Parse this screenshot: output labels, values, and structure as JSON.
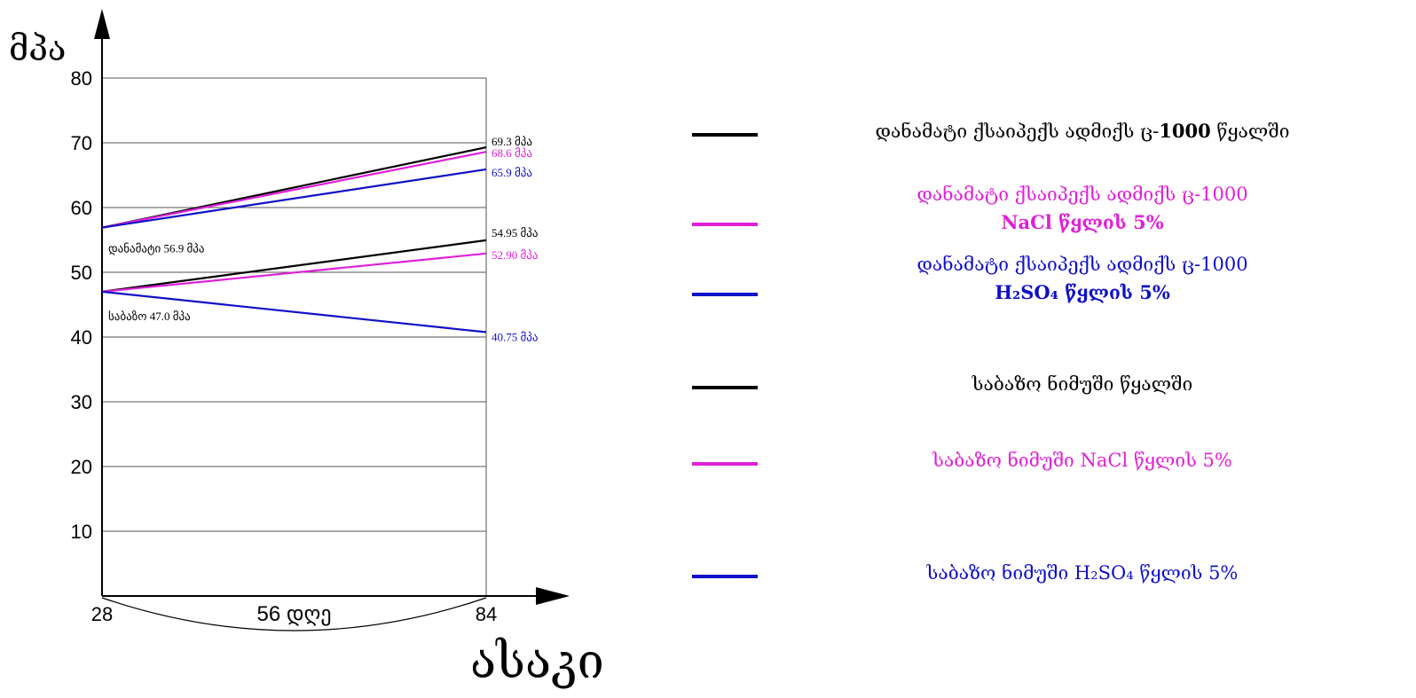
{
  "chart_data": {
    "type": "line",
    "ylabel": "მპა",
    "xlabel": "ასაკი",
    "x": [
      28,
      84
    ],
    "x_tick_labels": [
      "28",
      "84"
    ],
    "x_span_label": "56 დღე",
    "ylim": [
      0,
      80
    ],
    "yticks": [
      10,
      20,
      30,
      40,
      50,
      60,
      70,
      80
    ],
    "grid": true,
    "legend_position": "right",
    "series": [
      {
        "name": "დანამატი ქსაიპექს ადმიქს ც-1000 წყალში",
        "values": [
          56.9,
          69.3
        ],
        "color": "#000000",
        "end_label": "69.3 მპა"
      },
      {
        "name": "დანამატი ქსაიპექს ადმიქს ც-1000 NaCl წყლის 5%",
        "values": [
          56.9,
          68.6
        ],
        "color": "#e020d8",
        "end_label": "68.6 მპა"
      },
      {
        "name": "დანამატი ქსაიპექს ადმიქს ც-1000 H2SO4 წყლის 5%",
        "values": [
          56.9,
          65.9
        ],
        "color": "#1010c8",
        "end_label": "65.9 მპა"
      },
      {
        "name": "საბაზო ნიმუში წყალში",
        "values": [
          47.0,
          54.95
        ],
        "color": "#000000",
        "end_label": "54.95 მპა"
      },
      {
        "name": "საბაზო ნიმუში NaCl წყლის 5%",
        "values": [
          47.0,
          52.9
        ],
        "color": "#e020d8",
        "end_label": "52.90 მპა"
      },
      {
        "name": "საბაზო ნიმუში H2SO4 წყლის 5%",
        "values": [
          47.0,
          40.75
        ],
        "color": "#1010c8",
        "end_label": "40.75 მპა"
      }
    ],
    "annotations": [
      {
        "text": "დანამატი 56.9 მპა",
        "y": 56.9
      },
      {
        "text": "საბაზო 47.0 მპა",
        "y": 47.0
      }
    ]
  },
  "legend": [
    {
      "line1": "დანამატი ქსაიპექს ადმიქს ც-",
      "line1_bold": "1000",
      "line1_tail": " წყალში",
      "line2": "",
      "color": "#000000"
    },
    {
      "line1": "დანამატი ქსაიპექს ადმიქს ც-1000",
      "line1_bold": "",
      "line1_tail": "",
      "line2": "NaCl წყლის  5%",
      "color": "#e020d8"
    },
    {
      "line1": "დანამატი ქსაიპექს ადმიქს ც-1000",
      "line1_bold": "",
      "line1_tail": "",
      "line2": "H₂SO₄ წყლის 5%",
      "color": "#1010c8"
    },
    {
      "line1": "საბაზო ნიმუში წყალში",
      "line1_bold": "",
      "line1_tail": "",
      "line2": "",
      "color": "#000000"
    },
    {
      "line1": "საბაზო ნიმუში  NaCl წყლის 5%",
      "line1_bold": "",
      "line1_tail": "",
      "line2": "",
      "color": "#e020d8"
    },
    {
      "line1": "საბაზო ნიმუში H₂SO₄ წყლის 5%",
      "line1_bold": "",
      "line1_tail": "",
      "line2": "",
      "color": "#1010c8"
    }
  ]
}
